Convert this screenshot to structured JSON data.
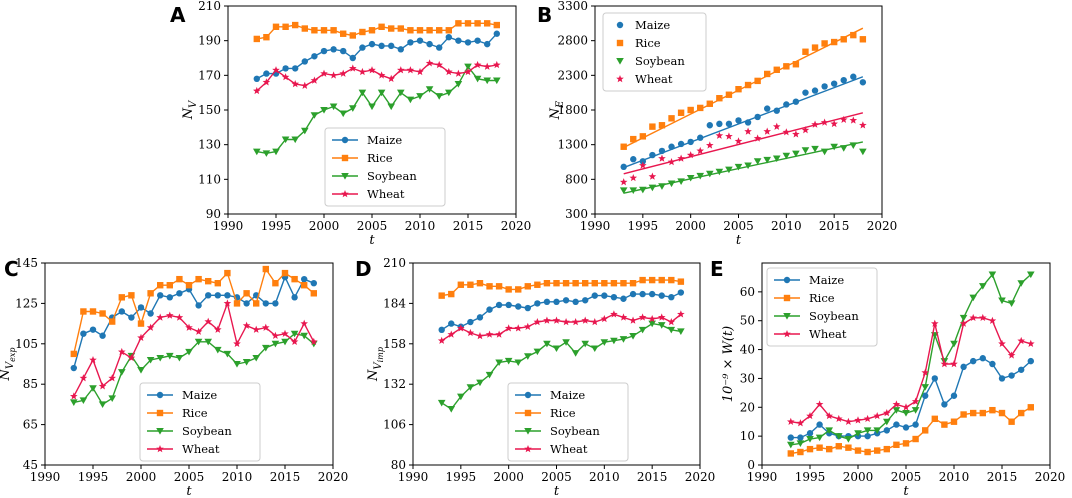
{
  "colors": {
    "Maize": "#1f77b4",
    "Rice": "#ff7f0e",
    "Soybean": "#2ca02c",
    "Wheat": "#e8174f"
  },
  "chart_data": [
    {
      "id": "A",
      "type": "line",
      "xlabel": "t",
      "ylabel_main": "N",
      "ylabel_sub": "V",
      "xlim": [
        1990,
        2020
      ],
      "ylim": [
        90,
        210
      ],
      "xticks": [
        1990,
        1995,
        2000,
        2005,
        2010,
        2015,
        2020
      ],
      "yticks": [
        90,
        110,
        130,
        150,
        170,
        190,
        210
      ],
      "legend_loc": "bottom-center",
      "x": [
        1993,
        1994,
        1995,
        1996,
        1997,
        1998,
        1999,
        2000,
        2001,
        2002,
        2003,
        2004,
        2005,
        2006,
        2007,
        2008,
        2009,
        2010,
        2011,
        2012,
        2013,
        2014,
        2015,
        2016,
        2017,
        2018
      ],
      "series": [
        {
          "name": "Maize",
          "marker": "circle",
          "values": [
            168,
            171,
            171,
            174,
            174,
            178,
            181,
            184,
            185,
            184,
            180,
            186,
            188,
            187,
            187,
            185,
            189,
            190,
            188,
            186,
            192,
            190,
            189,
            190,
            188,
            194
          ]
        },
        {
          "name": "Rice",
          "marker": "square",
          "values": [
            191,
            192,
            198,
            198,
            199,
            197,
            196,
            196,
            196,
            194,
            193,
            195,
            196,
            198,
            197,
            197,
            196,
            196,
            196,
            196,
            196,
            200,
            200,
            200,
            200,
            199
          ]
        },
        {
          "name": "Soybean",
          "marker": "triangle-down",
          "values": [
            126,
            125,
            126,
            133,
            133,
            138,
            147,
            150,
            152,
            148,
            151,
            160,
            152,
            160,
            152,
            160,
            156,
            158,
            162,
            158,
            160,
            165,
            175,
            168,
            167,
            167
          ]
        },
        {
          "name": "Wheat",
          "marker": "star",
          "values": [
            161,
            166,
            173,
            169,
            165,
            164,
            167,
            171,
            170,
            171,
            174,
            172,
            173,
            170,
            168,
            173,
            173,
            172,
            177,
            176,
            172,
            171,
            172,
            176,
            175,
            176
          ]
        }
      ]
    },
    {
      "id": "B",
      "type": "scatter",
      "xlabel": "t",
      "ylabel_main": "N",
      "ylabel_sub": "E",
      "xlim": [
        1990,
        2020
      ],
      "ylim": [
        300,
        3300
      ],
      "xticks": [
        1990,
        1995,
        2000,
        2005,
        2010,
        2015,
        2020
      ],
      "yticks": [
        300,
        800,
        1300,
        1800,
        2300,
        2800,
        3300
      ],
      "legend_loc": "top-left",
      "fit_lines": true,
      "x": [
        1993,
        1994,
        1995,
        1996,
        1997,
        1998,
        1999,
        2000,
        2001,
        2002,
        2003,
        2004,
        2005,
        2006,
        2007,
        2008,
        2009,
        2010,
        2011,
        2012,
        2013,
        2014,
        2015,
        2016,
        2017,
        2018
      ],
      "series": [
        {
          "name": "Maize",
          "marker": "circle",
          "fit": [
            970,
            2280
          ],
          "values": [
            980,
            1090,
            1060,
            1150,
            1210,
            1270,
            1310,
            1340,
            1400,
            1580,
            1600,
            1600,
            1650,
            1620,
            1700,
            1820,
            1790,
            1880,
            1920,
            2050,
            2080,
            2140,
            2180,
            2230,
            2280,
            2200
          ]
        },
        {
          "name": "Rice",
          "marker": "square",
          "fit": [
            1260,
            2980
          ],
          "values": [
            1270,
            1380,
            1420,
            1560,
            1580,
            1680,
            1760,
            1800,
            1830,
            1890,
            1970,
            2020,
            2100,
            2160,
            2220,
            2320,
            2380,
            2430,
            2460,
            2640,
            2700,
            2760,
            2780,
            2820,
            2880,
            2820
          ]
        },
        {
          "name": "Soybean",
          "marker": "triangle-down",
          "values": [
            640,
            640,
            650,
            680,
            700,
            740,
            770,
            820,
            850,
            880,
            910,
            940,
            980,
            1000,
            1060,
            1080,
            1100,
            1140,
            1170,
            1220,
            1240,
            1200,
            1270,
            1250,
            1290,
            1200
          ],
          "fit": [
            600,
            1340
          ]
        },
        {
          "name": "Wheat",
          "marker": "star",
          "fit": [
            880,
            1760
          ],
          "values": [
            760,
            820,
            1000,
            840,
            1100,
            1050,
            1100,
            1150,
            1210,
            1290,
            1430,
            1420,
            1350,
            1490,
            1390,
            1490,
            1560,
            1480,
            1450,
            1510,
            1590,
            1620,
            1600,
            1660,
            1650,
            1580
          ]
        }
      ]
    },
    {
      "id": "C",
      "type": "line",
      "xlabel": "t",
      "ylabel_main": "N",
      "ylabel_sub": "V",
      "ylabel_subsub": "exp",
      "xlim": [
        1990,
        2020
      ],
      "ylim": [
        45,
        145
      ],
      "xticks": [
        1990,
        1995,
        2000,
        2005,
        2010,
        2015,
        2020
      ],
      "yticks": [
        45,
        65,
        85,
        105,
        125,
        145
      ],
      "legend_loc": "bottom-center",
      "x": [
        1993,
        1994,
        1995,
        1996,
        1997,
        1998,
        1999,
        2000,
        2001,
        2002,
        2003,
        2004,
        2005,
        2006,
        2007,
        2008,
        2009,
        2010,
        2011,
        2012,
        2013,
        2014,
        2015,
        2016,
        2017,
        2018
      ],
      "series": [
        {
          "name": "Maize",
          "marker": "circle",
          "values": [
            93,
            110,
            112,
            109,
            118,
            121,
            118,
            123,
            120,
            129,
            128,
            130,
            132,
            124,
            129,
            129,
            129,
            128,
            125,
            129,
            125,
            125,
            138,
            128,
            137,
            135
          ]
        },
        {
          "name": "Rice",
          "marker": "square",
          "values": [
            100,
            121,
            121,
            120,
            116,
            128,
            129,
            115,
            130,
            134,
            134,
            137,
            134,
            137,
            136,
            135,
            140,
            125,
            130,
            125,
            142,
            135,
            140,
            137,
            134,
            130
          ]
        },
        {
          "name": "Soybean",
          "marker": "triangle-down",
          "values": [
            76,
            77,
            83,
            75,
            78,
            91,
            99,
            92,
            97,
            98,
            99,
            98,
            101,
            106,
            106,
            102,
            100,
            95,
            96,
            98,
            103,
            105,
            106,
            110,
            109,
            105
          ]
        },
        {
          "name": "Wheat",
          "marker": "star",
          "values": [
            79,
            88,
            97,
            84,
            88,
            101,
            98,
            108,
            113,
            118,
            119,
            118,
            113,
            111,
            116,
            112,
            125,
            105,
            114,
            112,
            113,
            109,
            110,
            106,
            115,
            106
          ]
        }
      ]
    },
    {
      "id": "D",
      "type": "line",
      "xlabel": "t",
      "ylabel_main": "N",
      "ylabel_sub": "V",
      "ylabel_subsub": "imp",
      "xlim": [
        1990,
        2020
      ],
      "ylim": [
        80,
        210
      ],
      "xticks": [
        1990,
        1995,
        2000,
        2005,
        2010,
        2015,
        2020
      ],
      "yticks": [
        80,
        106,
        132,
        158,
        184,
        210
      ],
      "legend_loc": "bottom-center",
      "x": [
        1993,
        1994,
        1995,
        1996,
        1997,
        1998,
        1999,
        2000,
        2001,
        2002,
        2003,
        2004,
        2005,
        2006,
        2007,
        2008,
        2009,
        2010,
        2011,
        2012,
        2013,
        2014,
        2015,
        2016,
        2017,
        2018
      ],
      "series": [
        {
          "name": "Maize",
          "marker": "circle",
          "values": [
            167,
            171,
            169,
            172,
            175,
            180,
            183,
            183,
            182,
            181,
            184,
            185,
            185,
            186,
            185,
            186,
            189,
            189,
            188,
            187,
            190,
            190,
            190,
            189,
            188,
            191
          ]
        },
        {
          "name": "Rice",
          "marker": "square",
          "values": [
            189,
            190,
            196,
            196,
            197,
            195,
            195,
            193,
            193,
            195,
            196,
            197,
            197,
            197,
            197,
            197,
            197,
            197,
            197,
            197,
            197,
            199,
            199,
            199,
            199,
            198
          ]
        },
        {
          "name": "Soybean",
          "marker": "triangle-down",
          "values": [
            120,
            116,
            124,
            130,
            133,
            138,
            146,
            147,
            146,
            150,
            153,
            158,
            155,
            159,
            152,
            158,
            155,
            159,
            160,
            161,
            163,
            167,
            171,
            170,
            167,
            166
          ]
        },
        {
          "name": "Wheat",
          "marker": "star",
          "values": [
            160,
            164,
            168,
            165,
            163,
            164,
            164,
            168,
            168,
            169,
            172,
            173,
            173,
            172,
            172,
            173,
            172,
            174,
            177,
            175,
            173,
            175,
            174,
            175,
            172,
            177
          ]
        }
      ]
    },
    {
      "id": "E",
      "type": "line",
      "xlabel": "t",
      "ylabel_text": "10⁻⁹ × W(t)",
      "xlim": [
        1990,
        2020
      ],
      "ylim": [
        0,
        70
      ],
      "xticks": [
        1990,
        1995,
        2000,
        2005,
        2010,
        2015,
        2020
      ],
      "yticks": [
        0,
        10,
        20,
        30,
        40,
        50,
        60
      ],
      "legend_loc": "top-left",
      "x": [
        1993,
        1994,
        1995,
        1996,
        1997,
        1998,
        1999,
        2000,
        2001,
        2002,
        2003,
        2004,
        2005,
        2006,
        2007,
        2008,
        2009,
        2010,
        2011,
        2012,
        2013,
        2014,
        2015,
        2016,
        2017,
        2018
      ],
      "series": [
        {
          "name": "Maize",
          "marker": "circle",
          "values": [
            9.5,
            9.5,
            11,
            14,
            11,
            10,
            10,
            10,
            10,
            11,
            12,
            14,
            13,
            14,
            24,
            30,
            21,
            24,
            34,
            36,
            37,
            35,
            30,
            31,
            33,
            36
          ]
        },
        {
          "name": "Rice",
          "marker": "square",
          "values": [
            4,
            4.5,
            5.5,
            6,
            5.5,
            6.5,
            6,
            5,
            4.5,
            5,
            5.5,
            7,
            7.5,
            9,
            12,
            16,
            14,
            15,
            17.5,
            18,
            18,
            19,
            18,
            15,
            18,
            20
          ]
        },
        {
          "name": "Soybean",
          "marker": "triangle-down",
          "values": [
            7,
            7.5,
            9,
            9.5,
            12,
            10,
            9,
            11,
            12,
            12,
            15,
            19,
            18,
            19,
            27,
            45,
            36,
            42,
            51,
            58,
            62,
            66,
            57,
            56,
            63,
            66
          ]
        },
        {
          "name": "Wheat",
          "marker": "star",
          "values": [
            15,
            14.5,
            17,
            21,
            17,
            16,
            15,
            15.5,
            16,
            17,
            18,
            21,
            20,
            22,
            32,
            49,
            35,
            35,
            49,
            51,
            51,
            50,
            42,
            38,
            43,
            42
          ]
        }
      ]
    }
  ]
}
